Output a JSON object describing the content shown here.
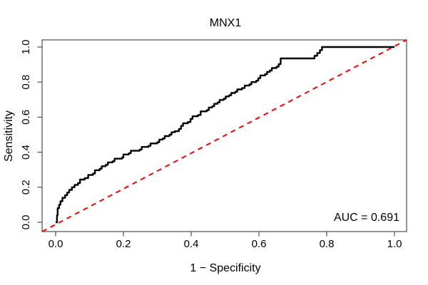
{
  "chart_data": {
    "type": "line",
    "subtype": "roc-step-curve",
    "title": "MNX1",
    "xlabel": "1 − Specificity",
    "ylabel": "Sensitivity",
    "annotation": "AUC = 0.691",
    "auc": 0.691,
    "xlim": [
      0,
      1
    ],
    "ylim": [
      0,
      1
    ],
    "x_ticks": [
      "0.0",
      "0.2",
      "0.4",
      "0.6",
      "0.8",
      "1.0"
    ],
    "y_ticks": [
      "0.0",
      "0.2",
      "0.4",
      "0.6",
      "0.8",
      "1.0"
    ],
    "grid": false,
    "legend": "none",
    "colors": {
      "roc_curve": "#000000",
      "reference_line": "#ff0000",
      "box": "#4d4d4d",
      "text": "#000000"
    },
    "reference_line": {
      "from": [
        0,
        0
      ],
      "to": [
        1,
        1
      ],
      "style": "dashed"
    },
    "series": [
      {
        "name": "ROC curve MNX1",
        "draw": "step",
        "points": [
          [
            0.0,
            0.0
          ],
          [
            0.004,
            0.04
          ],
          [
            0.006,
            0.08
          ],
          [
            0.01,
            0.1
          ],
          [
            0.014,
            0.12
          ],
          [
            0.02,
            0.14
          ],
          [
            0.028,
            0.155
          ],
          [
            0.034,
            0.17
          ],
          [
            0.04,
            0.185
          ],
          [
            0.048,
            0.2
          ],
          [
            0.056,
            0.213
          ],
          [
            0.066,
            0.224
          ],
          [
            0.072,
            0.244
          ],
          [
            0.086,
            0.252
          ],
          [
            0.096,
            0.27
          ],
          [
            0.11,
            0.278
          ],
          [
            0.116,
            0.297
          ],
          [
            0.13,
            0.306
          ],
          [
            0.136,
            0.32
          ],
          [
            0.148,
            0.328
          ],
          [
            0.154,
            0.342
          ],
          [
            0.168,
            0.348
          ],
          [
            0.174,
            0.363
          ],
          [
            0.196,
            0.37
          ],
          [
            0.2,
            0.387
          ],
          [
            0.216,
            0.394
          ],
          [
            0.222,
            0.408
          ],
          [
            0.248,
            0.415
          ],
          [
            0.254,
            0.43
          ],
          [
            0.274,
            0.436
          ],
          [
            0.28,
            0.45
          ],
          [
            0.3,
            0.457
          ],
          [
            0.306,
            0.472
          ],
          [
            0.316,
            0.478
          ],
          [
            0.322,
            0.492
          ],
          [
            0.336,
            0.5
          ],
          [
            0.342,
            0.514
          ],
          [
            0.352,
            0.52
          ],
          [
            0.364,
            0.533
          ],
          [
            0.37,
            0.55
          ],
          [
            0.376,
            0.565
          ],
          [
            0.39,
            0.572
          ],
          [
            0.398,
            0.59
          ],
          [
            0.404,
            0.605
          ],
          [
            0.42,
            0.612
          ],
          [
            0.428,
            0.633
          ],
          [
            0.446,
            0.64
          ],
          [
            0.452,
            0.655
          ],
          [
            0.462,
            0.662
          ],
          [
            0.468,
            0.676
          ],
          [
            0.478,
            0.684
          ],
          [
            0.484,
            0.698
          ],
          [
            0.496,
            0.705
          ],
          [
            0.502,
            0.718
          ],
          [
            0.512,
            0.725
          ],
          [
            0.518,
            0.738
          ],
          [
            0.53,
            0.745
          ],
          [
            0.536,
            0.758
          ],
          [
            0.55,
            0.766
          ],
          [
            0.558,
            0.78
          ],
          [
            0.572,
            0.787
          ],
          [
            0.578,
            0.8
          ],
          [
            0.592,
            0.808
          ],
          [
            0.598,
            0.822
          ],
          [
            0.604,
            0.838
          ],
          [
            0.618,
            0.845
          ],
          [
            0.624,
            0.858
          ],
          [
            0.632,
            0.866
          ],
          [
            0.638,
            0.88
          ],
          [
            0.652,
            0.888
          ],
          [
            0.658,
            0.902
          ],
          [
            0.664,
            0.935
          ],
          [
            0.758,
            0.935
          ],
          [
            0.764,
            0.95
          ],
          [
            0.772,
            0.966
          ],
          [
            0.78,
            0.982
          ],
          [
            0.786,
            1.0
          ],
          [
            1.0,
            1.0
          ]
        ]
      }
    ]
  }
}
